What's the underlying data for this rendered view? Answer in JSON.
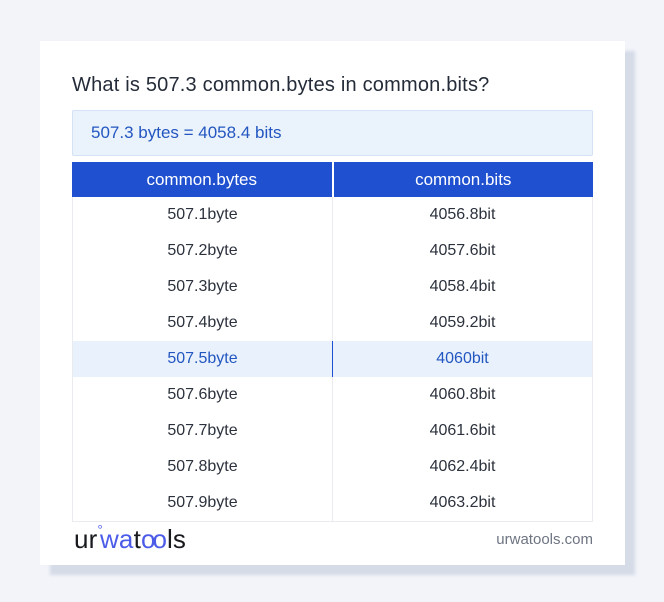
{
  "title": "What is 507.3 common.bytes in common.bits?",
  "result": {
    "text": "507.3 bytes = 4058.4 bits"
  },
  "table": {
    "headers": {
      "bytes": "common.bytes",
      "bits": "common.bits"
    },
    "rows": [
      {
        "bytes": "507.1byte",
        "bits": "4056.8bit"
      },
      {
        "bytes": "507.2byte",
        "bits": "4057.6bit"
      },
      {
        "bytes": "507.3byte",
        "bits": "4058.4bit"
      },
      {
        "bytes": "507.4byte",
        "bits": "4059.2bit"
      },
      {
        "bytes": "507.5byte",
        "bits": "4060bit"
      },
      {
        "bytes": "507.6byte",
        "bits": "4060.8bit"
      },
      {
        "bytes": "507.7byte",
        "bits": "4061.6bit"
      },
      {
        "bytes": "507.8byte",
        "bits": "4062.4bit"
      },
      {
        "bytes": "507.9byte",
        "bits": "4063.2bit"
      }
    ],
    "highlighted_row_index": 4
  },
  "footer": {
    "logo": {
      "ur": "ur",
      "degree": "°",
      "wa": "wa",
      "t": "t",
      "oo": "oo",
      "ls": "ls"
    },
    "site": "urwatools.com"
  },
  "colors": {
    "page_background": "#f2f4f9",
    "header_blue": "#1e50d0",
    "link_blue": "#2356c0",
    "highlight_row_bg": "#e9f2fc",
    "result_box_bg": "#eaf2fc",
    "result_box_border": "#d3e2f5",
    "logo_blue": "#4c5ce8",
    "body_text": "#2c323d",
    "muted_text": "#6e7582"
  }
}
